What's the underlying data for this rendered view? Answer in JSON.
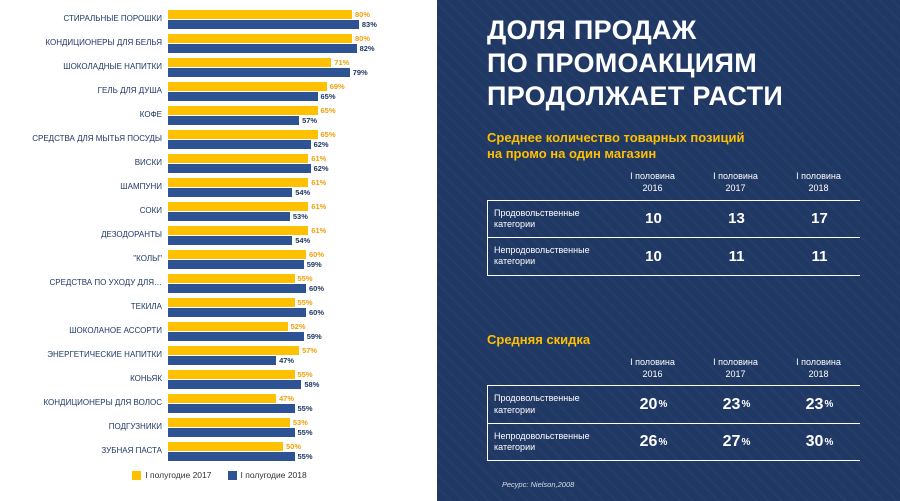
{
  "chart_data": {
    "type": "bar",
    "orientation": "horizontal",
    "title": "",
    "xlabel": "",
    "ylabel": "",
    "xlim": [
      0,
      100
    ],
    "value_suffix": "%",
    "legend_position": "bottom",
    "categories": [
      "СТИРАЛЬНЫЕ ПОРОШКИ",
      "КОНДИЦИОНЕРЫ ДЛЯ БЕЛЬЯ",
      "ШОКОЛАДНЫЕ НАПИТКИ",
      "ГЕЛЬ ДЛЯ ДУША",
      "КОФЕ",
      "СРЕДСТВА ДЛЯ МЫТЬЯ ПОСУДЫ",
      "ВИСКИ",
      "ШАМПУНИ",
      "СОКИ",
      "ДЕЗОДОРАНТЫ",
      "\"КОЛЫ\"",
      "СРЕДСТВА ПО УХОДУ ДЛЯ…",
      "ТЕКИЛА",
      "ШОКОЛАНОЕ АССОРТИ",
      "ЭНЕРГЕТИЧЕСКИЕ НАПИТКИ",
      "КОНЬЯК",
      "КОНДИЦИОНЕРЫ ДЛЯ ВОЛОС",
      "ПОДГУЗНИКИ",
      "ЗУБНАЯ ПАСТА"
    ],
    "series": [
      {
        "name": "I полугодие 2017",
        "color": "#FFC000",
        "values": [
          80,
          80,
          71,
          69,
          65,
          65,
          61,
          61,
          61,
          61,
          60,
          55,
          55,
          52,
          57,
          55,
          47,
          53,
          50
        ]
      },
      {
        "name": "I полугодие 2018",
        "color": "#2E5395",
        "values": [
          83,
          82,
          79,
          65,
          57,
          62,
          62,
          54,
          53,
          54,
          59,
          60,
          60,
          59,
          47,
          58,
          55,
          55,
          55
        ]
      }
    ]
  },
  "right_panel": {
    "title_lines": [
      "ДОЛЯ ПРОДАЖ",
      "ПО ПРОМОАКЦИЯМ",
      "ПРОДОЛЖАЕТ РАСТИ"
    ],
    "table1": {
      "heading": "Среднее количество товарных позиций\nна промо на один магазин",
      "columns": [
        "I половина\n2016",
        "I половина\n2017",
        "I половина\n2018"
      ],
      "rows": [
        {
          "label": "Продовольственные категории",
          "values": [
            "10",
            "13",
            "17"
          ]
        },
        {
          "label": "Непродовольственные категории",
          "values": [
            "10",
            "11",
            "11"
          ]
        }
      ]
    },
    "table2": {
      "heading": "Средняя скидка",
      "suffix": "%",
      "columns": [
        "I половина\n2016",
        "I половина\n2017",
        "I половина\n2018"
      ],
      "rows": [
        {
          "label": "Продовольственные категории",
          "values": [
            "20",
            "23",
            "23"
          ]
        },
        {
          "label": "Непродовольственные категории",
          "values": [
            "26",
            "27",
            "30"
          ]
        }
      ]
    },
    "source": "Ресурс: Nielson,2008"
  }
}
